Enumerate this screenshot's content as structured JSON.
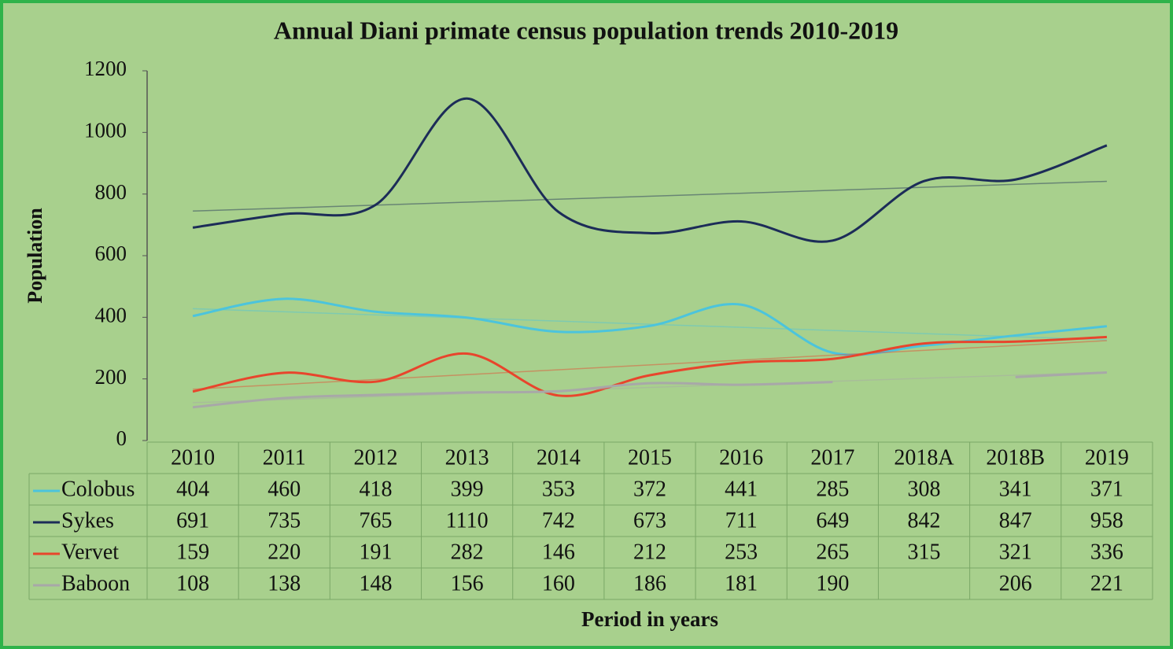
{
  "chart_data": {
    "type": "line",
    "title": "Annual Diani primate census population trends 2010-2019",
    "y_label": "Population",
    "x_label": "Period in years",
    "categories": [
      "2010",
      "2011",
      "2012",
      "2013",
      "2014",
      "2015",
      "2016",
      "2017",
      "2018A",
      "2018B",
      "2019"
    ],
    "series": [
      {
        "name": "Colobus",
        "color": "#4cc4dc",
        "values": [
          404,
          460,
          418,
          399,
          353,
          372,
          441,
          285,
          308,
          341,
          371
        ]
      },
      {
        "name": "Sykes",
        "color": "#1c2c58",
        "values": [
          691,
          735,
          765,
          1110,
          742,
          673,
          711,
          649,
          842,
          847,
          958
        ]
      },
      {
        "name": "Vervet",
        "color": "#e8452c",
        "values": [
          159,
          220,
          191,
          282,
          146,
          212,
          253,
          265,
          315,
          321,
          336
        ]
      },
      {
        "name": "Baboon",
        "color": "#a8a8a8",
        "values": [
          108,
          138,
          148,
          156,
          160,
          186,
          181,
          190,
          null,
          206,
          221
        ]
      }
    ],
    "ylim": [
      0,
      1200
    ],
    "yticks": [
      0,
      200,
      400,
      600,
      800,
      1000,
      1200
    ],
    "smooth": true,
    "trendlines": true,
    "data_table": true
  }
}
